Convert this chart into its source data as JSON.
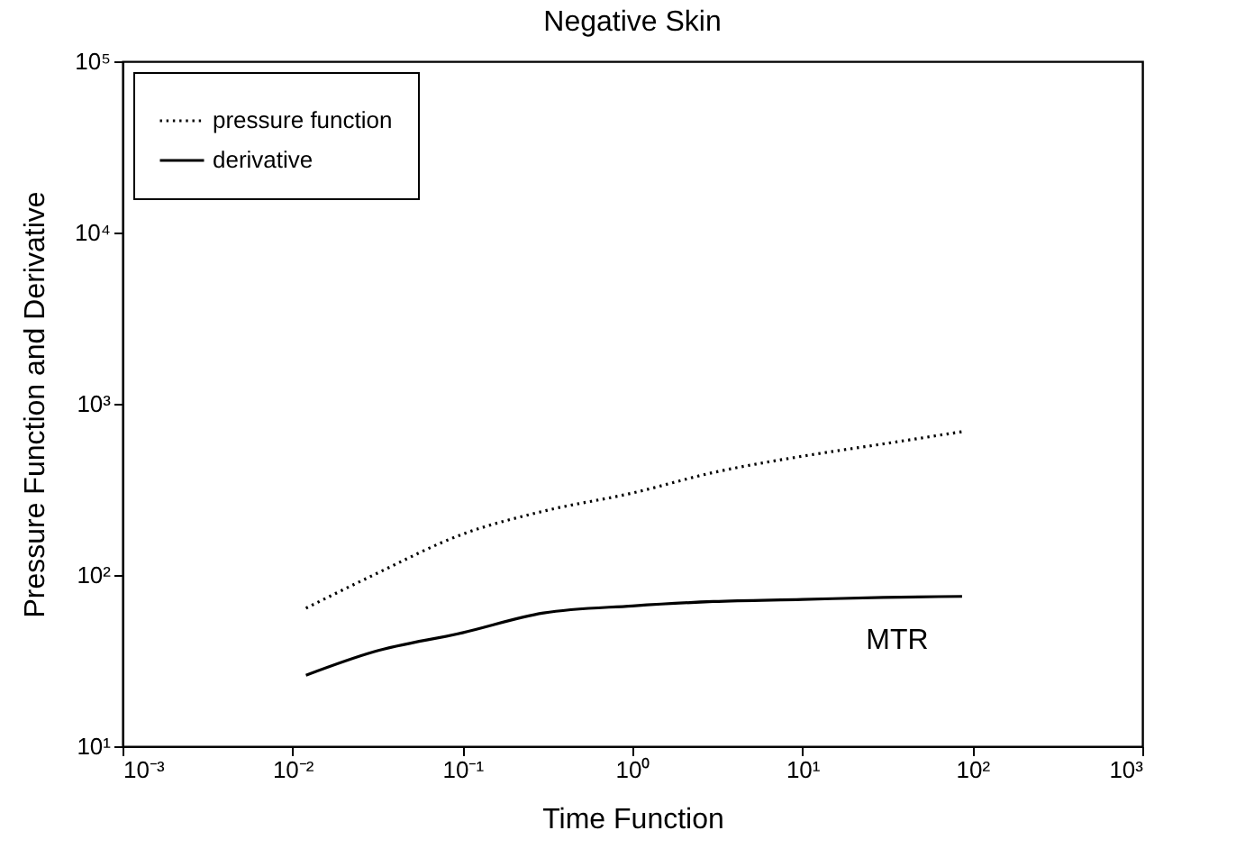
{
  "chart_data": {
    "type": "line",
    "title": "Negative Skin",
    "xlabel": "Time Function",
    "ylabel": "Pressure Function and Derivative",
    "x": [
      0.012,
      0.03,
      0.1,
      0.3,
      1,
      3,
      10,
      30,
      87
    ],
    "series": [
      {
        "name": "pressure function",
        "color": "#000000",
        "line_style": "dotted",
        "values": [
          64,
          100,
          173,
          236,
          301,
          397,
          494,
          583,
          687
        ]
      },
      {
        "name": "derivative",
        "color": "#000000",
        "line_style": "solid",
        "values": [
          26,
          35.6,
          46,
          60,
          66,
          70,
          72,
          74,
          75
        ]
      }
    ],
    "log": "xy",
    "grid": false,
    "legend": "top left",
    "marker": "none",
    "xlim": [
      0.001,
      1000
    ],
    "ylim": [
      10,
      100000
    ],
    "xticks": [
      {
        "value": 0.001,
        "label": "10⁻³"
      },
      {
        "value": 0.01,
        "label": "10⁻²"
      },
      {
        "value": 0.1,
        "label": "10⁻¹"
      },
      {
        "value": 1,
        "label": "10⁰"
      },
      {
        "value": 10,
        "label": "10¹"
      },
      {
        "value": 100,
        "label": "10²"
      },
      {
        "value": 1000,
        "label": "10³"
      }
    ],
    "yticks": [
      {
        "value": 10,
        "label": "10¹"
      },
      {
        "value": 100,
        "label": "10²"
      },
      {
        "value": 1000,
        "label": "10³"
      },
      {
        "value": 10000,
        "label": "10⁴"
      },
      {
        "value": 100000,
        "label": "10⁵"
      }
    ],
    "annotations": [
      "MTR"
    ]
  }
}
